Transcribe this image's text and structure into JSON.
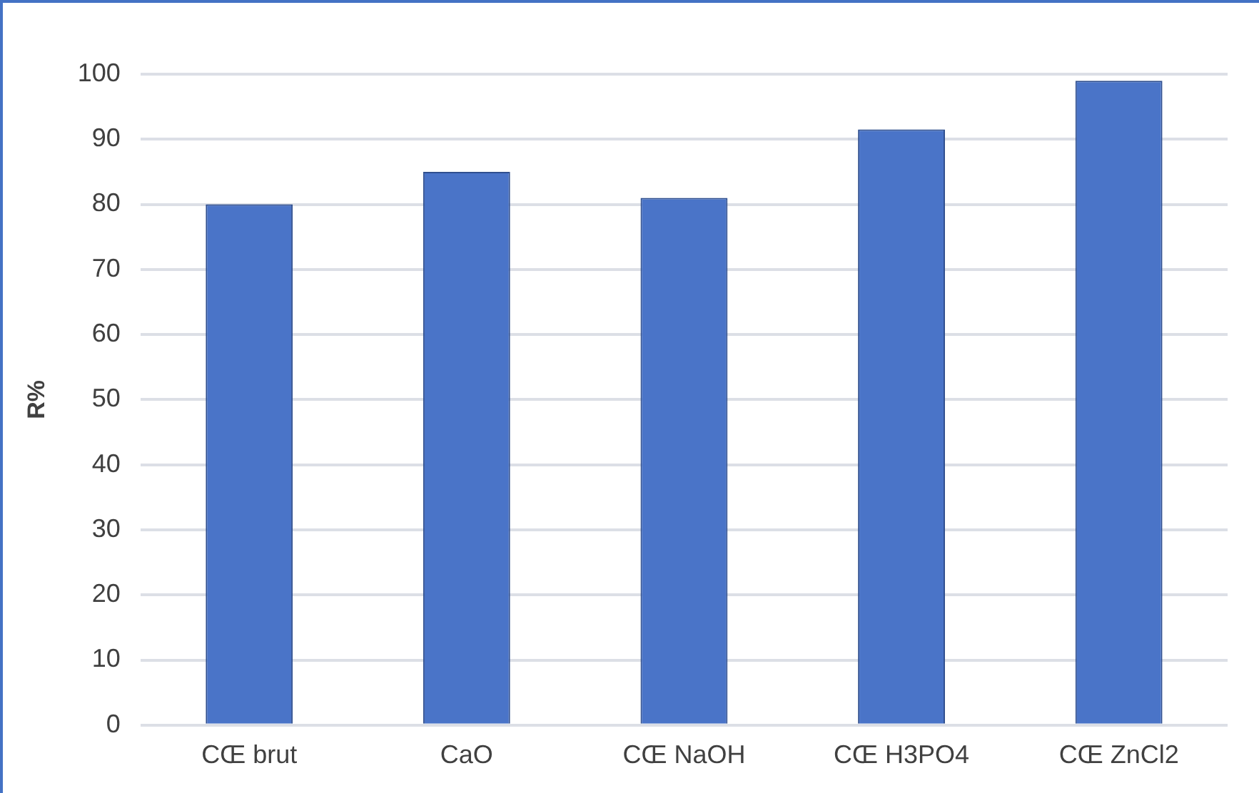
{
  "chart_data": {
    "type": "bar",
    "ylabel": "R%",
    "categories": [
      "CŒ brut",
      "CaO",
      "CŒ NaOH",
      "CŒ H3PO4",
      "CŒ ZnCl2"
    ],
    "values": [
      80,
      85,
      81,
      91.5,
      99
    ],
    "color": "#4a74c8",
    "ylim": [
      0,
      100
    ],
    "yticks": [
      0,
      10,
      20,
      30,
      40,
      50,
      60,
      70,
      80,
      90,
      100
    ],
    "grid": "y"
  }
}
